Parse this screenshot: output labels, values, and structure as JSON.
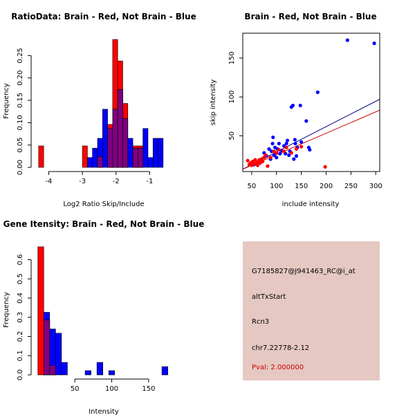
{
  "chart_data": [
    {
      "type": "histogram",
      "title": "RatioData: Brain - Red, Not Brain - Blue",
      "xlabel": "Log2 Ratio Skip/Include",
      "ylabel": "Frequency",
      "xlim": [
        -4.4,
        -0.35
      ],
      "ylim": [
        0,
        0.3
      ],
      "xticks": [
        -4,
        -3,
        -2,
        -1
      ],
      "yticks": [
        0.0,
        0.05,
        0.1,
        0.15,
        0.2,
        0.25
      ],
      "ytick_labels": [
        "0.00",
        "0.05",
        "0.10",
        "0.15",
        "0.20",
        "0.25"
      ],
      "series": [
        {
          "name": "Brain",
          "color": "#ff0000",
          "bins": [
            {
              "x0": -4.3,
              "x1": -4.15,
              "v": 0.048
            },
            {
              "x0": -3.0,
              "x1": -2.85,
              "v": 0.048
            },
            {
              "x0": -2.55,
              "x1": -2.4,
              "v": 0.024
            },
            {
              "x0": -2.25,
              "x1": -2.1,
              "v": 0.096
            },
            {
              "x0": -2.1,
              "x1": -1.95,
              "v": 0.286
            },
            {
              "x0": -1.95,
              "x1": -1.8,
              "v": 0.238
            },
            {
              "x0": -1.8,
              "x1": -1.65,
              "v": 0.143
            },
            {
              "x0": -1.5,
              "x1": -1.35,
              "v": 0.048
            },
            {
              "x0": -1.35,
              "x1": -1.2,
              "v": 0.048
            }
          ]
        },
        {
          "name": "Not Brain",
          "color": "#0000ff",
          "bins": [
            {
              "x0": -2.85,
              "x1": -2.7,
              "v": 0.022
            },
            {
              "x0": -2.7,
              "x1": -2.55,
              "v": 0.043
            },
            {
              "x0": -2.55,
              "x1": -2.4,
              "v": 0.065
            },
            {
              "x0": -2.4,
              "x1": -2.25,
              "v": 0.13
            },
            {
              "x0": -2.25,
              "x1": -2.1,
              "v": 0.087
            },
            {
              "x0": -2.1,
              "x1": -1.95,
              "v": 0.13
            },
            {
              "x0": -1.95,
              "x1": -1.8,
              "v": 0.174
            },
            {
              "x0": -1.8,
              "x1": -1.65,
              "v": 0.109
            },
            {
              "x0": -1.65,
              "x1": -1.5,
              "v": 0.065
            },
            {
              "x0": -1.5,
              "x1": -1.35,
              "v": 0.043
            },
            {
              "x0": -1.35,
              "x1": -1.2,
              "v": 0.043
            },
            {
              "x0": -1.2,
              "x1": -1.05,
              "v": 0.087
            },
            {
              "x0": -1.05,
              "x1": -0.9,
              "v": 0.022
            },
            {
              "x0": -0.9,
              "x1": -0.75,
              "v": 0.065
            },
            {
              "x0": -0.75,
              "x1": -0.6,
              "v": 0.065
            }
          ]
        }
      ],
      "overlap_color": "#800080"
    },
    {
      "type": "scatter",
      "title": "Brain - Red, Not Brain - Blue",
      "xlabel": "include intensity",
      "ylabel": "skip intensity",
      "xlim": [
        32,
        308
      ],
      "ylim": [
        4,
        182
      ],
      "xticks": [
        50,
        100,
        150,
        200,
        250,
        300
      ],
      "yticks": [
        50,
        100,
        150
      ],
      "series": [
        {
          "name": "Brain",
          "color": "#ff0000",
          "points": [
            [
              42,
              18
            ],
            [
              45,
              13
            ],
            [
              48,
              15
            ],
            [
              50,
              12
            ],
            [
              52,
              17
            ],
            [
              55,
              14
            ],
            [
              57,
              19
            ],
            [
              60,
              16
            ],
            [
              62,
              12
            ],
            [
              65,
              19
            ],
            [
              67,
              15
            ],
            [
              70,
              20
            ],
            [
              72,
              17
            ],
            [
              75,
              22
            ],
            [
              78,
              25
            ],
            [
              82,
              11
            ],
            [
              88,
              22
            ],
            [
              95,
              30
            ],
            [
              100,
              28
            ],
            [
              105,
              32
            ],
            [
              115,
              30
            ],
            [
              120,
              35
            ],
            [
              130,
              28
            ],
            [
              140,
              33
            ],
            [
              150,
              36
            ],
            [
              198,
              10
            ]
          ],
          "fit": {
            "x": [
              32,
              308
            ],
            "y": [
              7,
              83
            ]
          }
        },
        {
          "name": "Not Brain",
          "color": "#0000ff",
          "points": [
            [
              55,
              13
            ],
            [
              60,
              15
            ],
            [
              70,
              20
            ],
            [
              75,
              28
            ],
            [
              80,
              24
            ],
            [
              85,
              33
            ],
            [
              88,
              20
            ],
            [
              90,
              30
            ],
            [
              92,
              40
            ],
            [
              93,
              48
            ],
            [
              95,
              25
            ],
            [
              97,
              35
            ],
            [
              100,
              22
            ],
            [
              102,
              33
            ],
            [
              105,
              40
            ],
            [
              107,
              27
            ],
            [
              110,
              31
            ],
            [
              115,
              37
            ],
            [
              118,
              27
            ],
            [
              120,
              40
            ],
            [
              122,
              44
            ],
            [
              125,
              25
            ],
            [
              127,
              30
            ],
            [
              130,
              87
            ],
            [
              133,
              89
            ],
            [
              135,
              20
            ],
            [
              137,
              45
            ],
            [
              138,
              40
            ],
            [
              140,
              24
            ],
            [
              142,
              35
            ],
            [
              148,
              89
            ],
            [
              150,
              42
            ],
            [
              160,
              69
            ],
            [
              165,
              35
            ],
            [
              167,
              32
            ],
            [
              183,
              106
            ],
            [
              243,
              173
            ],
            [
              297,
              169
            ]
          ],
          "fit": {
            "x": [
              32,
              308
            ],
            "y": [
              7,
              97
            ]
          }
        }
      ]
    },
    {
      "type": "histogram",
      "title": "Gene Itensity: Brain - Red, Not Brain - Blue",
      "xlabel": "Intensity",
      "ylabel": "Frequency",
      "xlim": [
        -3.5,
        181
      ],
      "ylim": [
        0,
        0.67
      ],
      "xticks": [
        50,
        100,
        150
      ],
      "yticks": [
        0.0,
        0.1,
        0.2,
        0.3,
        0.4,
        0.5,
        0.6
      ],
      "ytick_labels": [
        "0.0",
        "0.1",
        "0.2",
        "0.3",
        "0.4",
        "0.5",
        "0.6"
      ],
      "series": [
        {
          "name": "Brain",
          "color": "#ff0000",
          "bins": [
            {
              "x0": 0,
              "x1": 8,
              "v": 0.667
            },
            {
              "x0": 8,
              "x1": 16,
              "v": 0.286
            },
            {
              "x0": 16,
              "x1": 24,
              "v": 0.048
            }
          ]
        },
        {
          "name": "Not Brain",
          "color": "#0000ff",
          "bins": [
            {
              "x0": 8,
              "x1": 16,
              "v": 0.326
            },
            {
              "x0": 16,
              "x1": 24,
              "v": 0.239
            },
            {
              "x0": 24,
              "x1": 32,
              "v": 0.217
            },
            {
              "x0": 32,
              "x1": 40,
              "v": 0.065
            },
            {
              "x0": 64,
              "x1": 72,
              "v": 0.022
            },
            {
              "x0": 80,
              "x1": 88,
              "v": 0.065
            },
            {
              "x0": 96,
              "x1": 104,
              "v": 0.022
            },
            {
              "x0": 168,
              "x1": 176,
              "v": 0.043
            }
          ]
        }
      ],
      "overlap_color": "#800080"
    }
  ],
  "info_panel": {
    "background": "#e5c8c1",
    "probe_id": "G7185827@J941463_RC@i_at",
    "event_type": "altTxStart",
    "gene": "Rcn3",
    "location": "chr7.22778-2.12",
    "pval": "Pval: 2.000000",
    "pval_color": "#cc0000"
  }
}
